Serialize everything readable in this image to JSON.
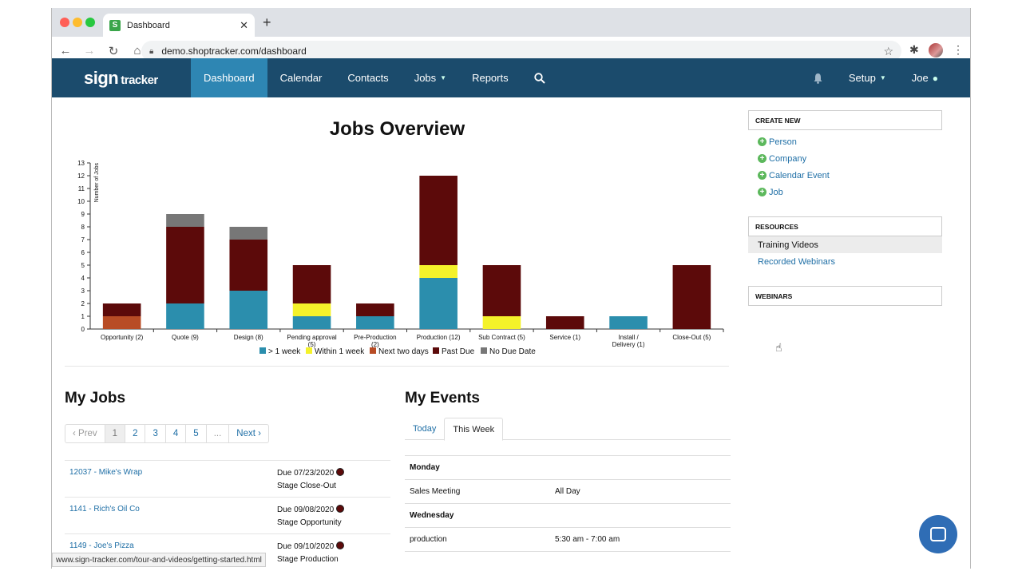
{
  "browser": {
    "tab_title": "Dashboard",
    "tab_favicon": "S",
    "url": "demo.shoptracker.com/dashboard"
  },
  "nav": {
    "logo_main": "sign",
    "logo_sub": "tracker",
    "items": [
      "Dashboard",
      "Calendar",
      "Contacts",
      "Jobs",
      "Reports"
    ],
    "setup": "Setup",
    "user": "Joe"
  },
  "chart_data": {
    "type": "bar",
    "title": "Jobs Overview",
    "ylabel": "Number of Jobs",
    "ylim": [
      0,
      13
    ],
    "stacked": true,
    "categories": [
      "Opportunity (2)",
      "Quote (9)",
      "Design (8)",
      "Pending approval (5)",
      "Pre-Production (2)",
      "Production (12)",
      "Sub Contract (5)",
      "Service (1)",
      "Install / Delivery (1)",
      "Close-Out (5)"
    ],
    "category_lines": [
      [
        "Opportunity (2)"
      ],
      [
        "Quote (9)"
      ],
      [
        "Design (8)"
      ],
      [
        "Pending approval",
        "(5)"
      ],
      [
        "Pre-Production",
        "(2)"
      ],
      [
        "Production (12)"
      ],
      [
        "Sub Contract (5)"
      ],
      [
        "Service (1)"
      ],
      [
        "Install /",
        "Delivery (1)"
      ],
      [
        "Close-Out (5)"
      ]
    ],
    "series": [
      {
        "name": "> 1 week",
        "color": "#2b8ead",
        "values": [
          0,
          2,
          3,
          1,
          1,
          4,
          0,
          0,
          1,
          0
        ]
      },
      {
        "name": "Within 1 week",
        "color": "#f4f22a",
        "values": [
          0,
          0,
          0,
          1,
          0,
          1,
          1,
          0,
          0,
          0
        ]
      },
      {
        "name": "Next two days",
        "color": "#b84c25",
        "values": [
          1,
          0,
          0,
          0,
          0,
          0,
          0,
          0,
          0,
          0
        ]
      },
      {
        "name": "Past Due",
        "color": "#5c0a0a",
        "values": [
          1,
          6,
          4,
          3,
          1,
          7,
          4,
          1,
          0,
          5
        ]
      },
      {
        "name": "No Due Date",
        "color": "#777777",
        "values": [
          0,
          1,
          1,
          0,
          0,
          0,
          0,
          0,
          0,
          0
        ]
      }
    ],
    "yticks": [
      0,
      1,
      2,
      3,
      4,
      5,
      6,
      7,
      8,
      9,
      10,
      11,
      12,
      13
    ],
    "legend": "bottom"
  },
  "my_jobs": {
    "title": "My Jobs",
    "pager": [
      "‹ Prev",
      "1",
      "2",
      "3",
      "4",
      "5",
      "...",
      "Next ›"
    ],
    "rows": [
      {
        "name": "12037 - Mike's Wrap",
        "due": "Due 07/23/2020",
        "stage": "Stage Close-Out"
      },
      {
        "name": "1141 - Rich's Oil Co",
        "due": "Due 09/08/2020",
        "stage": "Stage Opportunity"
      },
      {
        "name": "1149 - Joe's Pizza",
        "due": "Due 09/10/2020",
        "stage": "Stage Production"
      }
    ]
  },
  "my_events": {
    "title": "My Events",
    "tabs": [
      "Today",
      "This Week"
    ],
    "rows": [
      {
        "type": "day",
        "a": "Monday",
        "b": ""
      },
      {
        "type": "event",
        "a": "Sales Meeting",
        "b": "All Day"
      },
      {
        "type": "day",
        "a": "Wednesday",
        "b": ""
      },
      {
        "type": "event",
        "a": "production",
        "b": "5:30 am - 7:00 am"
      }
    ]
  },
  "sidebar": {
    "create_new": "CREATE NEW",
    "create_links": [
      "Person",
      "Company",
      "Calendar Event",
      "Job"
    ],
    "resources": "RESOURCES",
    "resource_links": [
      "Training Videos",
      "Recorded Webinars"
    ],
    "webinars": "WEBINARS"
  },
  "status_url": "www.sign-tracker.com/tour-and-videos/getting-started.html"
}
